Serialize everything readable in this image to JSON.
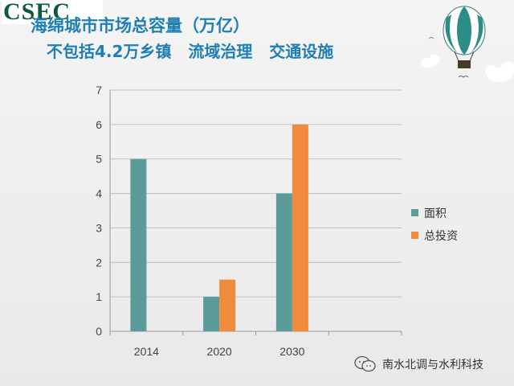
{
  "logo": "CSEC",
  "watermark_text": "南水北调与水利科技",
  "watermark_icon": "wechat-icon",
  "colors": {
    "title": "#1f7fb3",
    "area": "#5b9b9a",
    "investment": "#f08a3c",
    "axis": "#999999",
    "grid": "#bfbfbf"
  },
  "chart_data": {
    "type": "bar",
    "title": "海绵城市市场总容量（万亿）",
    "subtitle": "不包括4.2万乡镇   流域治理   交通设施",
    "categories": [
      "2014",
      "2020",
      "2030"
    ],
    "series": [
      {
        "name": "面积",
        "values": [
          5,
          1,
          4
        ]
      },
      {
        "name": "总投资",
        "values": [
          null,
          1.5,
          6
        ]
      }
    ],
    "ylim": [
      0,
      7
    ],
    "yticks": [
      0,
      1,
      2,
      3,
      4,
      5,
      6,
      7
    ],
    "xlabel": "",
    "ylabel": "",
    "grid": true,
    "legend": "right"
  }
}
